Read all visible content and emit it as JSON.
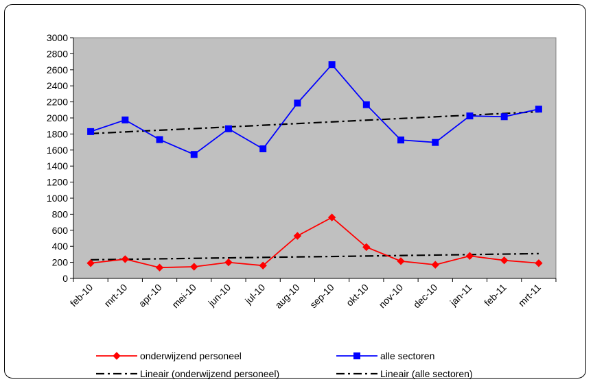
{
  "chart_data": {
    "type": "line",
    "title": "",
    "xlabel": "",
    "ylabel": "",
    "categories": [
      "feb-10",
      "mrt-10",
      "apr-10",
      "mei-10",
      "jun-10",
      "jul-10",
      "aug-10",
      "sep-10",
      "okt-10",
      "nov-10",
      "dec-10",
      "jan-11",
      "feb-11",
      "mrt-11"
    ],
    "ylim": [
      0,
      3000
    ],
    "yticks": [
      0,
      200,
      400,
      600,
      800,
      1000,
      1200,
      1400,
      1600,
      1800,
      2000,
      2200,
      2400,
      2600,
      2800,
      3000
    ],
    "grid": "off",
    "plot_background": "#c0c0c0",
    "legend_position": "bottom",
    "series": [
      {
        "name": "onderwijzend personeel",
        "color": "#ff0000",
        "marker": "diamond",
        "style": "solid",
        "values": [
          190,
          240,
          135,
          145,
          200,
          160,
          530,
          760,
          390,
          215,
          170,
          280,
          225,
          190
        ]
      },
      {
        "name": "alle sectoren",
        "color": "#0000ff",
        "marker": "square",
        "style": "solid",
        "values": [
          1830,
          1975,
          1730,
          1545,
          1865,
          1615,
          2185,
          2665,
          2165,
          1725,
          1695,
          2025,
          2015,
          2110
        ]
      },
      {
        "name": "Lineair (onderwijzend personeel)",
        "color": "#000000",
        "marker": "none",
        "style": "dash-dot",
        "values": [
          232,
          238,
          244,
          250,
          256,
          262,
          268,
          273,
          279,
          285,
          291,
          297,
          303,
          309
        ]
      },
      {
        "name": "Lineair (alle sectoren)",
        "color": "#000000",
        "marker": "none",
        "style": "dash-dot",
        "values": [
          1805,
          1826,
          1847,
          1867,
          1888,
          1909,
          1930,
          1951,
          1972,
          1993,
          2014,
          2035,
          2056,
          2077
        ]
      }
    ]
  }
}
